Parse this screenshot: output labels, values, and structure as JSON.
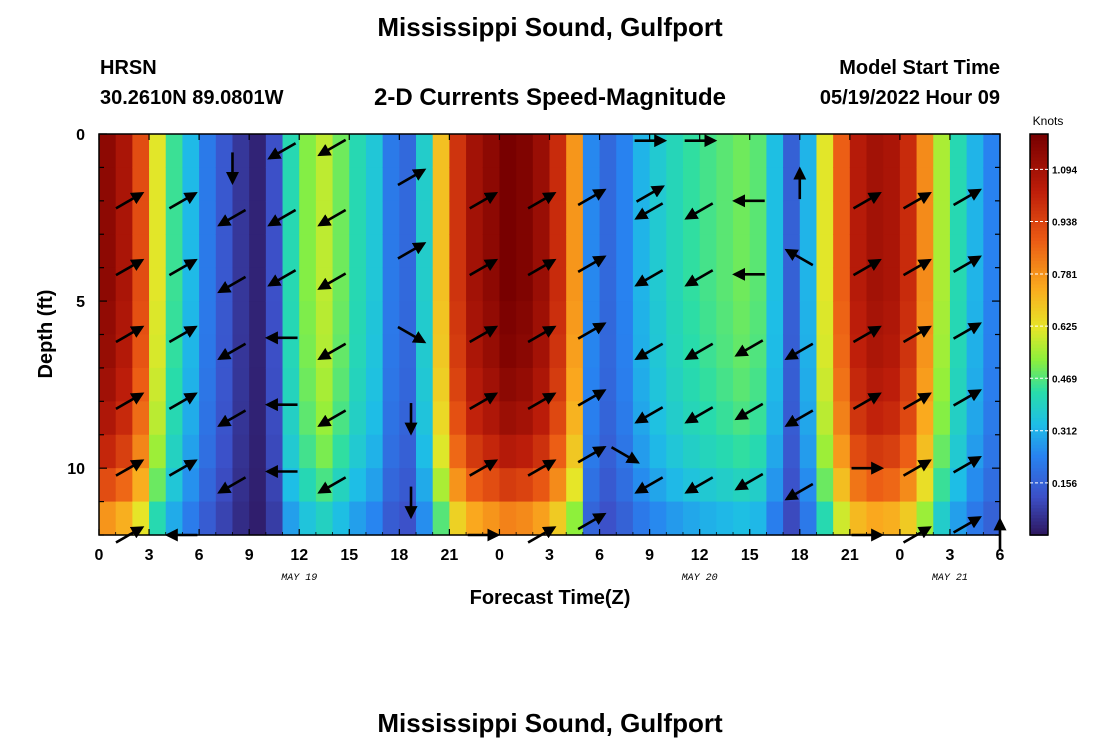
{
  "title": "Mississippi Sound, Gulfport",
  "repeated_title": "Mississippi Sound, Gulfport",
  "header": {
    "model": "HRSN",
    "location": "30.2610N  89.0801W",
    "subtitle": "2-D Currents Speed-Magnitude",
    "start_label": "Model Start Time",
    "start_value": "05/19/2022 Hour 09"
  },
  "chart_data": {
    "type": "heatmap",
    "title": "Mississippi Sound, Gulfport",
    "subtitle": "2-D Currents Speed-Magnitude",
    "xlabel": "Forecast Time(Z)",
    "ylabel": "Depth (ft)",
    "xlim": [
      0,
      54
    ],
    "ylim": [
      0,
      12
    ],
    "y_inverted": true,
    "x_ticks": [
      "0",
      "3",
      "6",
      "9",
      "12",
      "15",
      "18",
      "21",
      "0",
      "3",
      "6",
      "9",
      "12",
      "15",
      "18",
      "21",
      "0",
      "3",
      "6"
    ],
    "y_ticks": [
      0,
      5,
      10
    ],
    "date_labels": [
      {
        "x": 12,
        "label": "MAY 19"
      },
      {
        "x": 36,
        "label": "MAY 20"
      },
      {
        "x": 51,
        "label": "MAY 21"
      }
    ],
    "colorbar": {
      "label": "Knots",
      "min": 0,
      "max": 1.2,
      "ticks": [
        "0.156",
        "0.312",
        "0.469",
        "0.625",
        "0.781",
        "0.938",
        "1.094"
      ],
      "tick_values": [
        0.156,
        0.312,
        0.469,
        0.625,
        0.781,
        0.938,
        1.094
      ]
    },
    "time_profile": [
      [
        0,
        1.15
      ],
      [
        1,
        1.08
      ],
      [
        2,
        0.92
      ],
      [
        3,
        0.62
      ],
      [
        4,
        0.45
      ],
      [
        5,
        0.33
      ],
      [
        6,
        0.22
      ],
      [
        7,
        0.14
      ],
      [
        8,
        0.07
      ],
      [
        9,
        0.03
      ],
      [
        10,
        0.12
      ],
      [
        11,
        0.42
      ],
      [
        12,
        0.52
      ],
      [
        13,
        0.58
      ],
      [
        14,
        0.5
      ],
      [
        15,
        0.42
      ],
      [
        16,
        0.36
      ],
      [
        17,
        0.22
      ],
      [
        18,
        0.18
      ],
      [
        19,
        0.38
      ],
      [
        20,
        0.7
      ],
      [
        21,
        0.98
      ],
      [
        22,
        1.1
      ],
      [
        23,
        1.15
      ],
      [
        24,
        1.2
      ],
      [
        25,
        1.18
      ],
      [
        26,
        1.12
      ],
      [
        27,
        1.0
      ],
      [
        28,
        0.78
      ],
      [
        29,
        0.25
      ],
      [
        30,
        0.18
      ],
      [
        31,
        0.24
      ],
      [
        32,
        0.32
      ],
      [
        33,
        0.37
      ],
      [
        34,
        0.41
      ],
      [
        35,
        0.44
      ],
      [
        36,
        0.46
      ],
      [
        37,
        0.48
      ],
      [
        38,
        0.5
      ],
      [
        39,
        0.48
      ],
      [
        40,
        0.34
      ],
      [
        41,
        0.16
      ],
      [
        42,
        0.32
      ],
      [
        43,
        0.62
      ],
      [
        44,
        0.88
      ],
      [
        45,
        1.05
      ],
      [
        46,
        1.1
      ],
      [
        47,
        1.08
      ],
      [
        48,
        1.0
      ],
      [
        49,
        0.8
      ],
      [
        50,
        0.56
      ],
      [
        51,
        0.42
      ],
      [
        52,
        0.32
      ],
      [
        53,
        0.24
      ],
      [
        54,
        0.18
      ]
    ],
    "depth_profile": [
      [
        0,
        1.0
      ],
      [
        1,
        1.0
      ],
      [
        2,
        1.0
      ],
      [
        3,
        1.0
      ],
      [
        4,
        1.0
      ],
      [
        5,
        0.99
      ],
      [
        6,
        0.98
      ],
      [
        7,
        0.96
      ],
      [
        8,
        0.93
      ],
      [
        9,
        0.88
      ],
      [
        10,
        0.8
      ],
      [
        11,
        0.68
      ],
      [
        12,
        0.55
      ]
    ],
    "vectors": [
      {
        "t": 1.8,
        "d": [
          [
            2,
            "NE"
          ],
          [
            4,
            "NE"
          ],
          [
            6,
            "NE"
          ],
          [
            8,
            "NE"
          ],
          [
            10,
            "NE"
          ],
          [
            12,
            "NE"
          ]
        ]
      },
      {
        "t": 5,
        "d": [
          [
            2,
            "NE"
          ],
          [
            4,
            "NE"
          ],
          [
            6,
            "NE"
          ],
          [
            8,
            "NE"
          ],
          [
            10,
            "NE"
          ],
          [
            12,
            "W"
          ]
        ]
      },
      {
        "t": 8,
        "d": [
          [
            1,
            "S"
          ],
          [
            2.5,
            "SW"
          ],
          [
            4.5,
            "SW"
          ],
          [
            6.5,
            "SW"
          ],
          [
            8.5,
            "SW"
          ],
          [
            10.5,
            "SW"
          ]
        ]
      },
      {
        "t": 11,
        "d": [
          [
            0.5,
            "SW"
          ],
          [
            2.5,
            "SW"
          ],
          [
            4.3,
            "SW"
          ],
          [
            6.1,
            "W"
          ],
          [
            8.1,
            "W"
          ],
          [
            10.1,
            "W"
          ]
        ]
      },
      {
        "t": 14,
        "d": [
          [
            0.4,
            "SW"
          ],
          [
            2.5,
            "SW"
          ],
          [
            4.4,
            "SW"
          ],
          [
            6.5,
            "SW"
          ],
          [
            8.5,
            "SW"
          ],
          [
            10.5,
            "SW"
          ]
        ]
      },
      {
        "t": 18.7,
        "d": [
          [
            1.3,
            "NE"
          ],
          [
            3.5,
            "NE"
          ],
          [
            6,
            "SE"
          ],
          [
            8.5,
            "S"
          ],
          [
            11,
            "S"
          ]
        ]
      },
      {
        "t": 23,
        "d": [
          [
            2,
            "NE"
          ],
          [
            4,
            "NE"
          ],
          [
            6,
            "NE"
          ],
          [
            8,
            "NE"
          ],
          [
            10,
            "NE"
          ],
          [
            12,
            "E"
          ]
        ]
      },
      {
        "t": 26.5,
        "d": [
          [
            2,
            "NE"
          ],
          [
            4,
            "NE"
          ],
          [
            6,
            "NE"
          ],
          [
            8,
            "NE"
          ],
          [
            10,
            "NE"
          ],
          [
            12,
            "NE"
          ]
        ]
      },
      {
        "t": 29.5,
        "d": [
          [
            1.9,
            "NE"
          ],
          [
            3.9,
            "NE"
          ],
          [
            5.9,
            "NE"
          ],
          [
            7.9,
            "NE"
          ],
          [
            9.6,
            "NE"
          ],
          [
            11.6,
            "NE"
          ]
        ]
      },
      {
        "t": 31.5,
        "d": [
          [
            9.6,
            "SE"
          ]
        ]
      },
      {
        "t": 33,
        "d": [
          [
            0.2,
            "E"
          ],
          [
            1.8,
            "NE"
          ],
          [
            6.5,
            "SW"
          ],
          [
            2.3,
            "SW"
          ],
          [
            4.3,
            "SW"
          ],
          [
            8.4,
            "SW"
          ],
          [
            10.5,
            "SW"
          ]
        ]
      },
      {
        "t": 36,
        "d": [
          [
            0.2,
            "E"
          ],
          [
            2.3,
            "SW"
          ],
          [
            4.3,
            "SW"
          ],
          [
            6.5,
            "SW"
          ],
          [
            8.4,
            "SW"
          ],
          [
            10.5,
            "SW"
          ]
        ]
      },
      {
        "t": 39,
        "d": [
          [
            2,
            "W"
          ],
          [
            4.2,
            "W"
          ],
          [
            6.4,
            "SW"
          ],
          [
            8.3,
            "SW"
          ],
          [
            10.4,
            "SW"
          ]
        ]
      },
      {
        "t": 42,
        "d": [
          [
            1.5,
            "N"
          ],
          [
            3.7,
            "NW"
          ],
          [
            6.5,
            "SW"
          ],
          [
            8.5,
            "SW"
          ],
          [
            10.7,
            "SW"
          ]
        ]
      },
      {
        "t": 46,
        "d": [
          [
            2,
            "NE"
          ],
          [
            4,
            "NE"
          ],
          [
            6,
            "NE"
          ],
          [
            8,
            "NE"
          ],
          [
            10,
            "E"
          ],
          [
            12,
            "E"
          ]
        ]
      },
      {
        "t": 49,
        "d": [
          [
            2,
            "NE"
          ],
          [
            4,
            "NE"
          ],
          [
            6,
            "NE"
          ],
          [
            8,
            "NE"
          ],
          [
            10,
            "NE"
          ],
          [
            12,
            "NE"
          ]
        ]
      },
      {
        "t": 52,
        "d": [
          [
            1.9,
            "NE"
          ],
          [
            3.9,
            "NE"
          ],
          [
            5.9,
            "NE"
          ],
          [
            7.9,
            "NE"
          ],
          [
            9.9,
            "NE"
          ],
          [
            11.7,
            "NE"
          ]
        ]
      },
      {
        "t": 54,
        "d": [
          [
            12,
            "N"
          ]
        ]
      }
    ]
  }
}
